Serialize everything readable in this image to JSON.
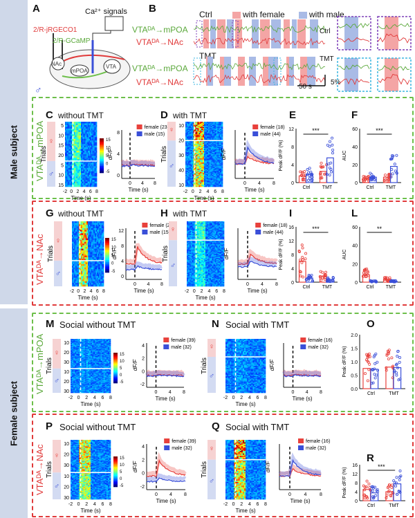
{
  "sections": {
    "male": "Male subject",
    "female": "Female subject"
  },
  "panelA": {
    "label": "A",
    "signal": "Ca²⁺ signals",
    "rjgeco": "2/R-jRGECO1",
    "gcamp": "2/R-GCaMP",
    "nac": "NAc",
    "mpoa": "mPOA",
    "vta": "VTA"
  },
  "panelB": {
    "label": "B",
    "ctrl": "Ctrl",
    "tmt": "TMT",
    "legend_female": "with female",
    "legend_male": "with male",
    "trace1": "VTAᴰᴬ→mPOA",
    "trace2": "VTAᴰᴬ→NAc",
    "scale_time": "50 s",
    "scale_amp": "5%",
    "ctrl_right": "Ctrl",
    "tmt_right": "TMT"
  },
  "row1": {
    "side": "VTAᴰᴬ→mPOA",
    "C": "C",
    "C_title": "without TMT",
    "D": "D",
    "D_title": "with TMT",
    "E": "E",
    "F": "F",
    "C_fem": "female (23)",
    "C_male": "male (15)",
    "D_fem": "female (18)",
    "D_male": "male (44)"
  },
  "row2": {
    "side": "VTAᴰᴬ→NAc",
    "G": "G",
    "G_title": "without TMT",
    "H": "H",
    "H_title": "with TMT",
    "I": "I",
    "L": "L",
    "G_fem": "female (2…)",
    "G_male": "male (15)",
    "H_fem": "female (18)",
    "H_male": "male (44)"
  },
  "row3": {
    "side": "VTAᴰᴬ→mPOA",
    "M": "M",
    "M_title": "Social without TMT",
    "N": "N",
    "N_title": "Social with TMT",
    "O": "O",
    "M_fem": "female (39)",
    "M_male": "male (32)",
    "N_fem": "female (16)",
    "N_male": "male (32)"
  },
  "row4": {
    "side": "VTAᴰᴬ→NAc",
    "P": "P",
    "P_title": "Social without TMT",
    "Q": "Q",
    "Q_title": "Social with TMT",
    "R": "R",
    "P_fem": "female (39)",
    "P_male": "male (32)",
    "Q_fem": "female (16)",
    "Q_male": "male (32)"
  },
  "axes": {
    "trials": "Trials",
    "time": "Time (s)",
    "dff": "dF/F",
    "peak": "Peak dF/F (%)",
    "auc": "AUC",
    "ctrl": "Ctrl",
    "tmt": "TMT",
    "fem_sym": "♀",
    "male_sym": "♂"
  },
  "sig": {
    "E": "***",
    "F": "***",
    "I": "***",
    "L": "**",
    "R": "***"
  },
  "colors": {
    "female": "#e8413c",
    "male": "#3a4fd8",
    "green_box": "#6dbf4a",
    "red_box": "#e03a3a",
    "side_bg": "#cfd8e9",
    "mpoa_text": "#5aa83a",
    "nac_text": "#e03a3a"
  },
  "ticks": {
    "t_hm": [
      "-2",
      "0",
      "2",
      "4",
      "6",
      "8"
    ],
    "t_short": [
      "0",
      "4",
      "8"
    ],
    "cbar": [
      "15",
      "10",
      "5",
      "0",
      "-5"
    ],
    "E_y": [
      "0",
      "4",
      "8",
      "12"
    ],
    "F_y": [
      "0",
      "20",
      "40",
      "60"
    ],
    "I_y": [
      "0",
      "4",
      "8",
      "12",
      "16"
    ],
    "L_y": [
      "0",
      "20",
      "40",
      "60"
    ],
    "O_y": [
      "0.0",
      "0.5",
      "1.0",
      "1.5",
      "2.0"
    ],
    "R_y": [
      "0",
      "4",
      "8",
      "12",
      "16"
    ],
    "C_trials": [
      "5",
      "10",
      "15",
      "20",
      "5",
      "10",
      "15"
    ],
    "D_trials": [
      "10",
      "20",
      "30",
      "40",
      "10"
    ],
    "M_trials": [
      "10",
      "20",
      "30",
      "10",
      "20",
      "30"
    ],
    "P_trials": [
      "10",
      "20",
      "30",
      "10",
      "20",
      "30"
    ],
    "lineC_y": [
      "8",
      "4",
      "0"
    ],
    "lineG_y": [
      "12",
      "8",
      "4",
      "0"
    ],
    "lineM_y": [
      "4",
      "2",
      "0",
      "-2"
    ],
    "lineP_y": [
      "4",
      "2",
      "0",
      "-2"
    ]
  },
  "chart_data": [
    {
      "type": "bar",
      "panel": "E",
      "categories": [
        "Ctrl",
        "TMT"
      ],
      "series": [
        {
          "name": "female",
          "values": [
            1.5,
            2.5
          ]
        },
        {
          "name": "male",
          "values": [
            1.8,
            5.5
          ]
        }
      ],
      "ylabel": "Peak dF/F (%)",
      "ylim": [
        0,
        12
      ]
    },
    {
      "type": "bar",
      "panel": "F",
      "categories": [
        "Ctrl",
        "TMT"
      ],
      "series": [
        {
          "name": "female",
          "values": [
            4,
            6
          ]
        },
        {
          "name": "male",
          "values": [
            6,
            18
          ]
        }
      ],
      "ylabel": "AUC",
      "ylim": [
        0,
        60
      ]
    },
    {
      "type": "bar",
      "panel": "I",
      "categories": [
        "Ctrl",
        "TMT"
      ],
      "series": [
        {
          "name": "female",
          "values": [
            6,
            1.8
          ]
        },
        {
          "name": "male",
          "values": [
            1.2,
            0.8
          ]
        }
      ],
      "ylabel": "Peak dF/F (%)",
      "ylim": [
        0,
        16
      ]
    },
    {
      "type": "bar",
      "panel": "L",
      "categories": [
        "Ctrl",
        "TMT"
      ],
      "series": [
        {
          "name": "female",
          "values": [
            8,
            3
          ]
        },
        {
          "name": "male",
          "values": [
            1,
            1
          ]
        }
      ],
      "ylabel": "AUC",
      "ylim": [
        0,
        60
      ]
    },
    {
      "type": "bar",
      "panel": "O",
      "categories": [
        "Ctrl",
        "TMT"
      ],
      "series": [
        {
          "name": "female",
          "values": [
            0.75,
            0.8
          ]
        },
        {
          "name": "male",
          "values": [
            0.72,
            0.78
          ]
        }
      ],
      "ylabel": "Peak dF/F (%)",
      "ylim": [
        0,
        2
      ]
    },
    {
      "type": "bar",
      "panel": "R",
      "categories": [
        "Ctrl",
        "TMT"
      ],
      "series": [
        {
          "name": "female",
          "values": [
            5,
            4
          ]
        },
        {
          "name": "male",
          "values": [
            3.5,
            7.5
          ]
        }
      ],
      "ylabel": "Peak dF/F (%)",
      "ylim": [
        0,
        16
      ]
    }
  ]
}
